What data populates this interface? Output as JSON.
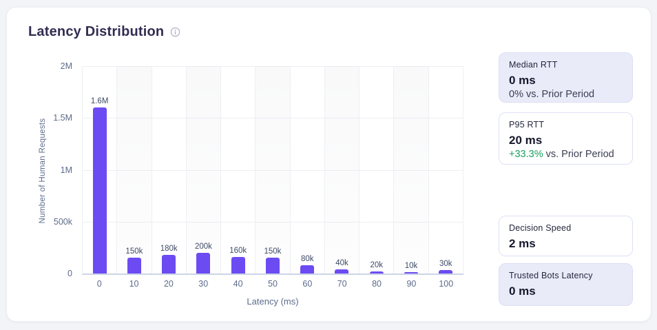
{
  "header": {
    "title": "Latency Distribution",
    "info_icon": "info-icon"
  },
  "colors": {
    "accent": "#6C4BF2",
    "positive": "#18A05F",
    "axis_line": "#CBD4E6",
    "grid_line": "#EEEFF3",
    "tick_text": "#5C6B8A",
    "bar_label_text": "#3E4A66",
    "title_text": "#312D52",
    "card_tint_bg": "#E9EBF9",
    "card_border": "#DDE0F5",
    "page_bg": "#F3F4F7"
  },
  "chart_data": {
    "type": "bar",
    "title": "Latency Distribution",
    "xlabel": "Latency (ms)",
    "ylabel": "Number of Human Requests",
    "categories": [
      "0",
      "10",
      "20",
      "30",
      "40",
      "50",
      "60",
      "70",
      "80",
      "90",
      "100"
    ],
    "values": [
      1600000,
      150000,
      180000,
      200000,
      160000,
      150000,
      80000,
      40000,
      20000,
      10000,
      30000
    ],
    "bar_labels": [
      "1.6M",
      "150k",
      "180k",
      "200k",
      "160k",
      "150k",
      "80k",
      "40k",
      "20k",
      "10k",
      "30k"
    ],
    "y_ticks": [
      "2M",
      "1.5M",
      "1M",
      "500k",
      "0"
    ],
    "ylim": [
      0,
      2000000
    ],
    "grid": true,
    "legend": "none",
    "bar_color": "#6C4BF2"
  },
  "cards": [
    {
      "label": "Median RTT",
      "value": "0 ms",
      "delta": "0%",
      "delta_suffix": " vs. Prior Period",
      "delta_positive": false,
      "tinted": true
    },
    {
      "label": "P95 RTT",
      "value": "20 ms",
      "delta": "+33.3%",
      "delta_suffix": " vs. Prior Period",
      "delta_positive": true,
      "tinted": false
    },
    {
      "label": "Decision Speed",
      "value": "2 ms",
      "tinted": false
    },
    {
      "label": "Trusted Bots Latency",
      "value": "0 ms",
      "tinted": true
    }
  ]
}
